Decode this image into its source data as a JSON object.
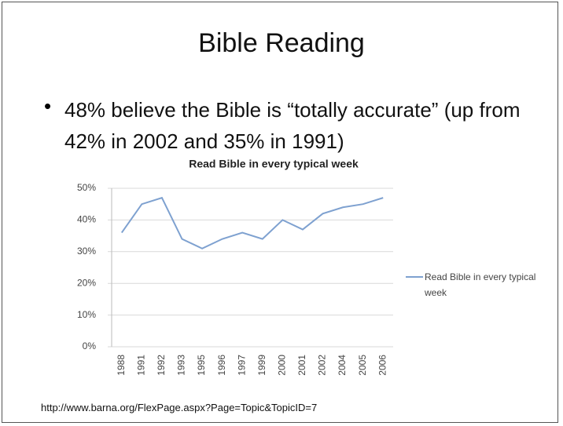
{
  "slide": {
    "title": "Bible Reading",
    "bullet": "48% believe the Bible is “totally accurate” (up from 42% in 2002 and 35% in 1991)",
    "source": "http://www.barna.org/FlexPage.aspx?Page=Topic&TopicID=7"
  },
  "chart_data": {
    "type": "line",
    "title": "Read Bible in every typical week",
    "categories": [
      "1988",
      "1991",
      "1992",
      "1993",
      "1995",
      "1996",
      "1997",
      "1999",
      "2000",
      "2001",
      "2002",
      "2004",
      "2005",
      "2006"
    ],
    "series": [
      {
        "name": "Read Bible in every typical week",
        "color": "#7ea1d0",
        "values": [
          36,
          45,
          47,
          34,
          31,
          34,
          36,
          34,
          40,
          37,
          42,
          44,
          45,
          47
        ]
      }
    ],
    "ylim": [
      0,
      50
    ],
    "yticks": [
      {
        "value": 0,
        "label": "0%"
      },
      {
        "value": 10,
        "label": "10%"
      },
      {
        "value": 20,
        "label": "20%"
      },
      {
        "value": 30,
        "label": "30%"
      },
      {
        "value": 40,
        "label": "40%"
      },
      {
        "value": 50,
        "label": "50%"
      }
    ],
    "grid": true,
    "legend": "right"
  }
}
